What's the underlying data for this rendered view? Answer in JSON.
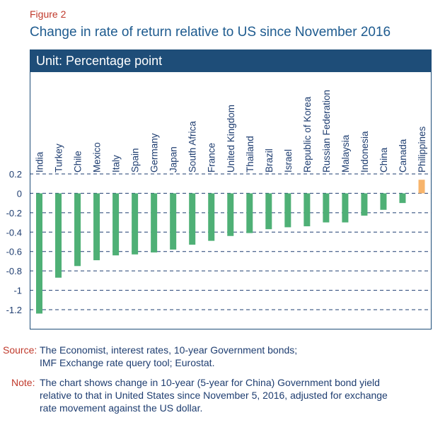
{
  "figure_label": "Figure 2",
  "title": "Change in rate of return relative to US since November 2016",
  "unit_label": "Unit: Percentage point",
  "colors": {
    "negative_bar": "#4fb076",
    "positive_bar": "#f7b46b",
    "frame": "#1e4d78",
    "accent": "#c0392b",
    "title": "#1e5b8f"
  },
  "chart_data": {
    "type": "bar",
    "title": "Change in rate of return relative to US since November 2016",
    "ylabel": "Percentage point",
    "ylim": [
      -1.3,
      0.2
    ],
    "yticks": [
      0.2,
      0,
      -0.2,
      -0.4,
      -0.6,
      -0.8,
      -1,
      -1.2
    ],
    "ytick_labels": [
      "0.2",
      "0",
      "-0.2",
      "-0.4",
      "-0.6",
      "-0.8",
      "-1",
      "-1.2"
    ],
    "grid": true,
    "categories": [
      "India",
      "Turkey",
      "Chile",
      "Mexico",
      "Italy",
      "Spain",
      "Germany",
      "Japan",
      "South Africa",
      "France",
      "United Kingdom",
      "Thailand",
      "Brazil",
      "Israel",
      "Republic of Korea",
      "Russian Federation",
      "Malaysia",
      "Indonesia",
      "China",
      "Canada",
      "Philippines"
    ],
    "values": [
      -1.24,
      -0.87,
      -0.75,
      -0.69,
      -0.64,
      -0.63,
      -0.61,
      -0.58,
      -0.53,
      -0.49,
      -0.44,
      -0.41,
      -0.37,
      -0.35,
      -0.34,
      -0.3,
      -0.3,
      -0.23,
      -0.17,
      -0.1,
      0.14
    ]
  },
  "footer": {
    "source_label": "Source:",
    "source_lines": [
      "The Economist, interest rates, 10-year Government bonds;",
      "IMF Exchange rate query tool; Eurostat."
    ],
    "note_label": "Note:",
    "note_lines": [
      "The chart shows change in 10-year (5-year for China) Government bond yield",
      "relative to that in United States since November 5, 2016, adjusted for exchange",
      "rate movement against the US dollar."
    ]
  }
}
